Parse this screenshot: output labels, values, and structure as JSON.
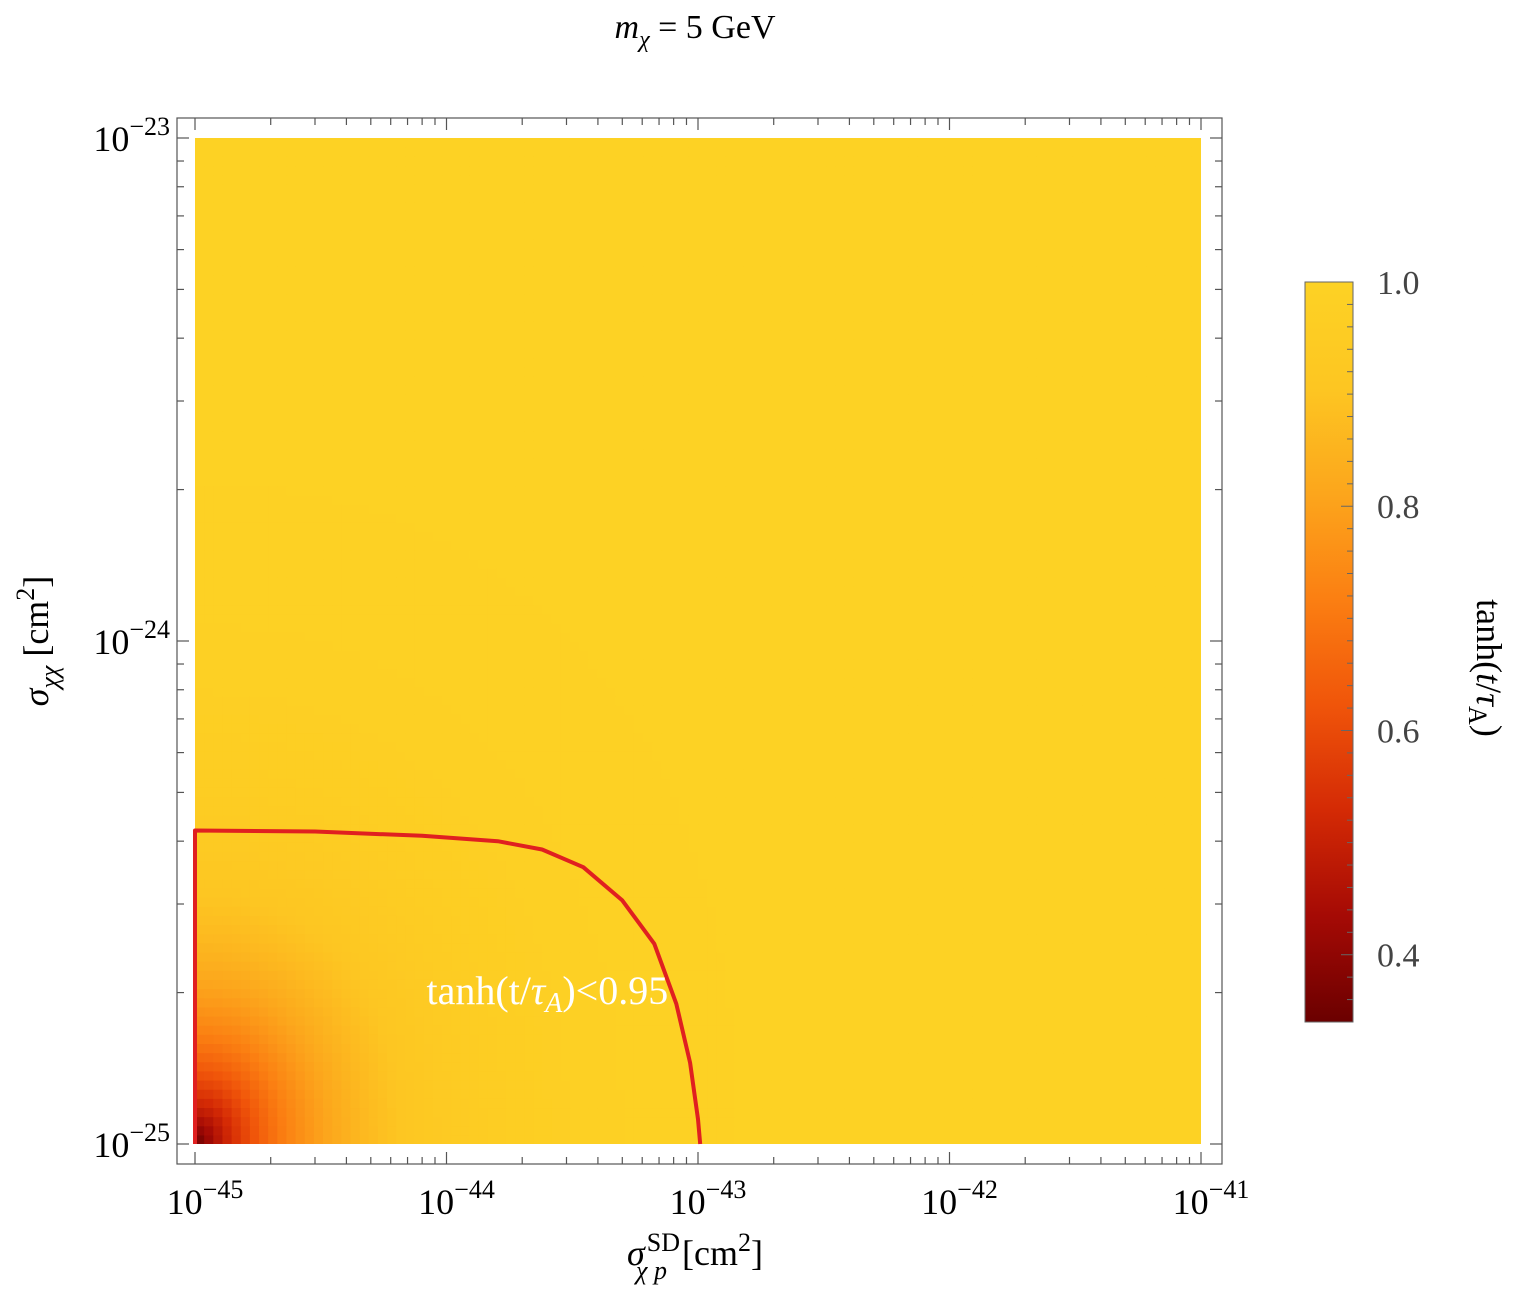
{
  "chart_data": {
    "type": "heatmap",
    "title": {
      "prefix": "m",
      "sub": "χ",
      "rest": " = 5 GeV"
    },
    "x_axis": {
      "scale": "log",
      "range": [
        1e-45,
        1e-41
      ],
      "label": {
        "sym": "σ",
        "sup": "SD",
        "sub": "χ p",
        "unit": " [cm",
        "unit_sup": "2",
        "close": "]"
      },
      "ticks": [
        {
          "value": 1e-45,
          "base": "10",
          "exp": "−45"
        },
        {
          "value": 1e-44,
          "base": "10",
          "exp": "−44"
        },
        {
          "value": 1e-43,
          "base": "10",
          "exp": "−43"
        },
        {
          "value": 1e-42,
          "base": "10",
          "exp": "−42"
        },
        {
          "value": 1e-41,
          "base": "10",
          "exp": "−41"
        }
      ]
    },
    "y_axis": {
      "scale": "log",
      "range": [
        1e-25,
        1e-23
      ],
      "label": {
        "sym": "σ",
        "sub": "χχ",
        "unit": " [cm",
        "unit_sup": "2",
        "close": "]"
      },
      "ticks": [
        {
          "value": 1e-25,
          "base": "10",
          "exp": "−25"
        },
        {
          "value": 1e-24,
          "base": "10",
          "exp": "−24"
        },
        {
          "value": 1e-23,
          "base": "10",
          "exp": "−23"
        }
      ]
    },
    "grid": false,
    "colorbar": {
      "placement": "right",
      "range": [
        0.34,
        1.0
      ],
      "label": {
        "pre": "tanh(",
        "t": "t",
        "slash": "/",
        "tau": "τ",
        "sub": "A",
        "post": ")"
      },
      "ticks": [
        {
          "value": 0.4,
          "label": "0.4"
        },
        {
          "value": 0.6,
          "label": "0.6"
        },
        {
          "value": 0.8,
          "label": "0.8"
        },
        {
          "value": 1.0,
          "label": "1.0"
        }
      ],
      "colors": [
        "#6b0000",
        "#a50a05",
        "#d42a05",
        "#f0550a",
        "#fb7f12",
        "#fca61c",
        "#fdc622",
        "#fdd224"
      ]
    },
    "contour": {
      "level": 0.95,
      "color": "#e02020",
      "label": {
        "pre": "tanh(t/",
        "tau": "τ",
        "sub": "A",
        "post": ")<0.95"
      },
      "label_position": {
        "x": 1e-44,
        "y": 1.9e-25
      },
      "points": [
        [
          1e-45,
          1e-25
        ],
        [
          1e-45,
          4.2e-25
        ],
        [
          3e-45,
          4.18e-25
        ],
        [
          8e-45,
          4.1e-25
        ],
        [
          1.6e-44,
          4e-25
        ],
        [
          2.4e-44,
          3.85e-25
        ],
        [
          3.5e-44,
          3.55e-25
        ],
        [
          5e-44,
          3.05e-25
        ],
        [
          6.7e-44,
          2.5e-25
        ],
        [
          8.2e-44,
          1.9e-25
        ],
        [
          9.3e-44,
          1.45e-25
        ],
        [
          1e-43,
          1.12e-25
        ],
        [
          1.02e-43,
          1e-25
        ]
      ]
    },
    "field_model": {
      "min": 0.34,
      "max": 1.0,
      "x_scale_decades": 1.02,
      "y_scale_decades": 0.62,
      "shape_power": 2.2,
      "gamma": 1.1
    }
  }
}
